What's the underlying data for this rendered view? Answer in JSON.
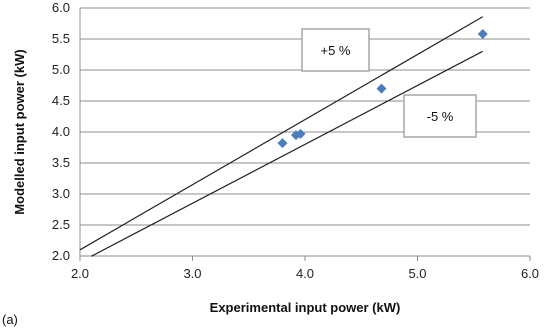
{
  "panel_label": "(a)",
  "chart_data": {
    "type": "scatter",
    "xlabel": "Experimental input power (kW)",
    "ylabel": "Modelled input power (kW)",
    "xlim": [
      2.0,
      6.0
    ],
    "ylim": [
      2.0,
      6.0
    ],
    "x_ticks": [
      "2.0",
      "3.0",
      "4.0",
      "5.0",
      "6.0"
    ],
    "y_ticks": [
      "2.0",
      "2.5",
      "3.0",
      "3.5",
      "4.0",
      "4.5",
      "5.0",
      "5.5",
      "6.0"
    ],
    "grid": "horizontal",
    "series": [
      {
        "points": [
          {
            "x": 3.8,
            "y": 3.82
          },
          {
            "x": 3.92,
            "y": 3.95
          },
          {
            "x": 3.96,
            "y": 3.97
          },
          {
            "x": 4.68,
            "y": 4.7
          },
          {
            "x": 5.58,
            "y": 5.58
          }
        ],
        "color": "#4a7ebb",
        "marker": "diamond"
      }
    ],
    "reference_lines": [
      {
        "label": "+5 %",
        "slope": 1.05,
        "x_range": [
          2.0,
          5.58
        ]
      },
      {
        "label": "-5 %",
        "slope": 0.95,
        "x_range": [
          2.1,
          5.58
        ]
      }
    ],
    "annotations": [
      "+5 %",
      "-5 %"
    ],
    "line_color": "#222222",
    "grid_color": "#8c8c8c"
  }
}
